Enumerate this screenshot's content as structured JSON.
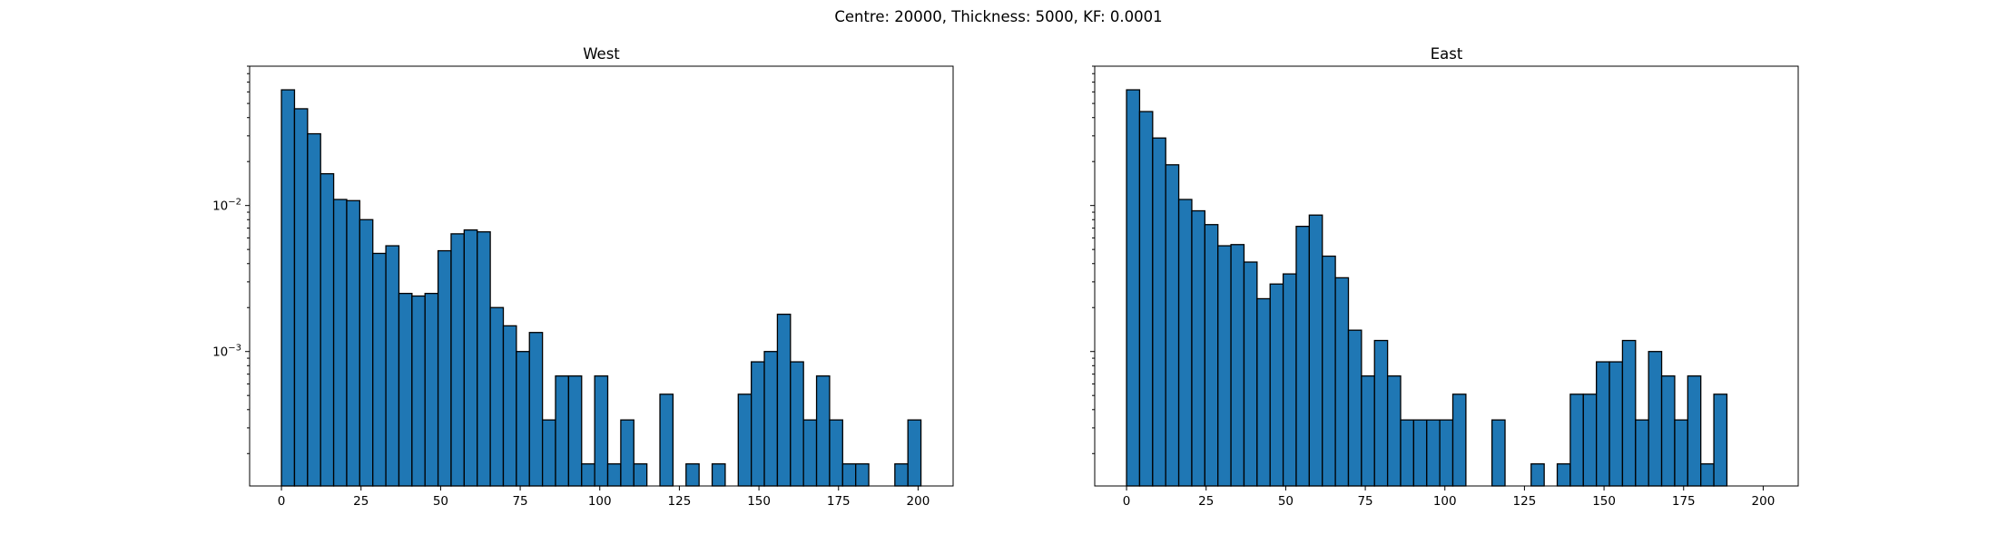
{
  "figure": {
    "title": "Centre: 20000, Thickness: 5000, KF: 0.0001"
  },
  "chart_data": [
    {
      "type": "bar",
      "title": "West",
      "xlabel": "",
      "ylabel": "",
      "yscale": "log",
      "xlim": [
        -10,
        211
      ],
      "ylim": [
        0.00012,
        0.09
      ],
      "bin_width": 4.1,
      "x_ticks": [
        0,
        25,
        50,
        75,
        100,
        125,
        150,
        175,
        200
      ],
      "y_ticks": [
        {
          "value": 0.01,
          "label": "10^-2"
        },
        {
          "value": 0.001,
          "label": "10^-3"
        }
      ],
      "bins_start": [
        0,
        4.1,
        8.2,
        12.3,
        16.4,
        20.5,
        24.6,
        28.7,
        32.8,
        36.9,
        41,
        45.1,
        49.2,
        53.3,
        57.4,
        61.5,
        65.6,
        69.7,
        73.8,
        77.9,
        82,
        86.1,
        90.2,
        94.3,
        98.4,
        102.5,
        106.6,
        110.7,
        114.8,
        118.9,
        123,
        127.1,
        131.2,
        135.3,
        139.4,
        143.5,
        147.6,
        151.7,
        155.8,
        159.9,
        164,
        168.1,
        172.2,
        176.3,
        180.4,
        184.5,
        188.6,
        192.7,
        196.8
      ],
      "values": [
        0.062,
        0.046,
        0.031,
        0.0165,
        0.011,
        0.0108,
        0.008,
        0.0047,
        0.0053,
        0.0025,
        0.0024,
        0.0025,
        0.0049,
        0.0064,
        0.0068,
        0.0066,
        0.002,
        0.0015,
        0.001,
        0.00135,
        0.00034,
        0.00068,
        0.00068,
        0.00017,
        0.00068,
        0.00017,
        0.00034,
        0.00017,
        0,
        0.00051,
        0,
        0.00017,
        0,
        0.00017,
        0,
        0.00051,
        0.00085,
        0.001,
        0.0018,
        0.00085,
        0.00034,
        0.00068,
        0.00034,
        0.00017,
        0.00017,
        0,
        0,
        0.00017,
        0.00034
      ]
    },
    {
      "type": "bar",
      "title": "East",
      "xlabel": "",
      "ylabel": "",
      "yscale": "log",
      "xlim": [
        -10,
        211
      ],
      "ylim": [
        0.00012,
        0.09
      ],
      "bin_width": 4.1,
      "x_ticks": [
        0,
        25,
        50,
        75,
        100,
        125,
        150,
        175,
        200
      ],
      "y_ticks": [
        {
          "value": 0.01,
          "label": "10^-2"
        },
        {
          "value": 0.001,
          "label": "10^-3"
        }
      ],
      "bins_start": [
        0,
        4.1,
        8.2,
        12.3,
        16.4,
        20.5,
        24.6,
        28.7,
        32.8,
        36.9,
        41,
        45.1,
        49.2,
        53.3,
        57.4,
        61.5,
        65.6,
        69.7,
        73.8,
        77.9,
        82,
        86.1,
        90.2,
        94.3,
        98.4,
        102.5,
        106.6,
        110.7,
        114.8,
        118.9,
        123,
        127.1,
        131.2,
        135.3,
        139.4,
        143.5,
        147.6,
        151.7,
        155.8,
        159.9,
        164,
        168.1,
        172.2,
        176.3,
        180.4,
        184.5
      ],
      "values": [
        0.062,
        0.044,
        0.029,
        0.019,
        0.011,
        0.0092,
        0.0074,
        0.0053,
        0.0054,
        0.0041,
        0.0023,
        0.0029,
        0.0034,
        0.0072,
        0.0086,
        0.0045,
        0.0032,
        0.0014,
        0.00068,
        0.00119,
        0.00068,
        0.00034,
        0.00034,
        0.00034,
        0.00034,
        0.00051,
        0,
        0,
        0.00034,
        0,
        0,
        0.00017,
        0,
        0.00017,
        0.00051,
        0.00051,
        0.00085,
        0.00085,
        0.00119,
        0.00034,
        0.001,
        0.00068,
        0.00034,
        0.00068,
        0.00017,
        0.00051
      ]
    }
  ]
}
